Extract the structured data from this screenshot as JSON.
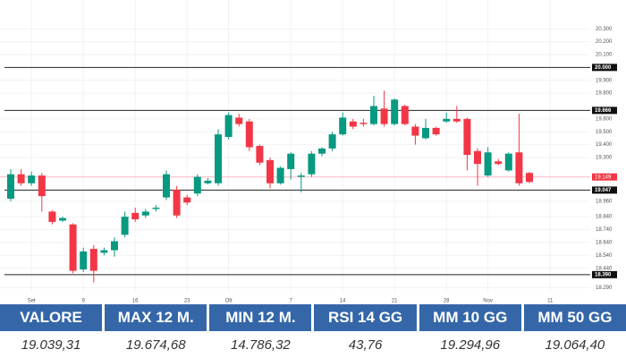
{
  "chart_data": {
    "type": "candlestick",
    "categories": [
      null,
      null,
      "Set",
      null,
      null,
      null,
      null,
      "9",
      null,
      null,
      null,
      null,
      "16",
      null,
      null,
      null,
      null,
      "23",
      null,
      null,
      null,
      "Ott",
      null,
      null,
      null,
      null,
      null,
      "7",
      null,
      null,
      null,
      null,
      "14",
      null,
      null,
      null,
      null,
      "21",
      null,
      null,
      null,
      null,
      "28",
      null,
      null,
      null,
      "Nov",
      null,
      null,
      null,
      null,
      null,
      "11"
    ],
    "open": [
      18980,
      19170,
      19100,
      19160,
      18880,
      18810,
      18780,
      18430,
      18590,
      18560,
      18580,
      18700,
      18870,
      18850,
      18900,
      18990,
      19050,
      18990,
      19020,
      19100,
      19100,
      19460,
      19610,
      19580,
      19390,
      19280,
      19100,
      19210,
      19150,
      19170,
      19330,
      19370,
      19480,
      19580,
      19570,
      19560,
      19680,
      19560,
      19700,
      19540,
      19450,
      19530,
      19580,
      19600,
      19600,
      19350,
      19160,
      19270,
      19200,
      19340,
      19180,
      null,
      null
    ],
    "high": [
      19210,
      19210,
      19190,
      19180,
      18890,
      18840,
      18790,
      18600,
      18620,
      18600,
      18680,
      18880,
      18910,
      18900,
      18930,
      19200,
      19080,
      19010,
      19170,
      19140,
      19520,
      19650,
      19640,
      19600,
      19400,
      19300,
      19230,
      19340,
      19180,
      19350,
      19380,
      19500,
      19650,
      19600,
      19600,
      19780,
      19820,
      19760,
      19710,
      19560,
      19600,
      19540,
      19650,
      19700,
      19610,
      19370,
      19380,
      19290,
      19340,
      19640,
      19190,
      null,
      null
    ],
    "low": [
      18960,
      19080,
      19080,
      18880,
      18780,
      18800,
      18400,
      18410,
      18330,
      18540,
      18530,
      18680,
      18800,
      18830,
      18880,
      18970,
      18830,
      18930,
      19000,
      19090,
      19080,
      19440,
      19540,
      19350,
      19240,
      19060,
      19090,
      19130,
      19030,
      19150,
      19310,
      19350,
      19470,
      19520,
      19540,
      19550,
      19540,
      19550,
      19550,
      19400,
      19440,
      19470,
      19570,
      19570,
      19200,
      19080,
      19150,
      19240,
      19190,
      19080,
      19100,
      null,
      null
    ],
    "close": [
      19170,
      19100,
      19160,
      19000,
      18800,
      18830,
      18420,
      18570,
      18420,
      18580,
      18650,
      18840,
      18820,
      18880,
      18910,
      19170,
      18850,
      18950,
      19150,
      19120,
      19480,
      19630,
      19560,
      19380,
      19260,
      19100,
      19220,
      19330,
      19160,
      19330,
      19370,
      19480,
      19610,
      19540,
      19560,
      19700,
      19560,
      19750,
      19560,
      19470,
      19530,
      19480,
      19600,
      19580,
      19320,
      19250,
      19340,
      19250,
      19330,
      19100,
      19110,
      null,
      null
    ],
    "up_color": "#089981",
    "down_color": "#f23645",
    "ylim": [
      18250,
      20350
    ],
    "yticks": [
      {
        "value": 20300,
        "label": "20.300"
      },
      {
        "value": 20200,
        "label": "20.200"
      },
      {
        "value": 20100,
        "label": "20.100"
      },
      {
        "value": 19900,
        "label": "19.900"
      },
      {
        "value": 19800,
        "label": "19.800"
      },
      {
        "value": 19600,
        "label": "19.600"
      },
      {
        "value": 19500,
        "label": "19.500"
      },
      {
        "value": 19400,
        "label": "19.400"
      },
      {
        "value": 19300,
        "label": "19.300"
      },
      {
        "value": 18960,
        "label": "18.960"
      },
      {
        "value": 18840,
        "label": "18.840"
      },
      {
        "value": 18740,
        "label": "18.740"
      },
      {
        "value": 18640,
        "label": "18.640"
      },
      {
        "value": 18540,
        "label": "18.540"
      },
      {
        "value": 18440,
        "label": "18.440"
      },
      {
        "value": 18290,
        "label": "18.290"
      }
    ],
    "levels": [
      {
        "value": 20000,
        "label": "20.000"
      },
      {
        "value": 19666,
        "label": "19.666"
      },
      {
        "value": 19047,
        "label": "19.047"
      },
      {
        "value": 18390,
        "label": "18.390"
      }
    ],
    "last": {
      "value": 19149,
      "label": "19.149"
    },
    "grid": true
  },
  "table": {
    "headers": [
      "VALORE",
      "MAX 12 M.",
      "MIN 12 M.",
      "RSI 14 GG",
      "MM 10 GG",
      "MM 50 GG"
    ],
    "values": [
      "19.039,31",
      "19.674,68",
      "14.786,32",
      "43,76",
      "19.294,96",
      "19.064,40"
    ]
  }
}
